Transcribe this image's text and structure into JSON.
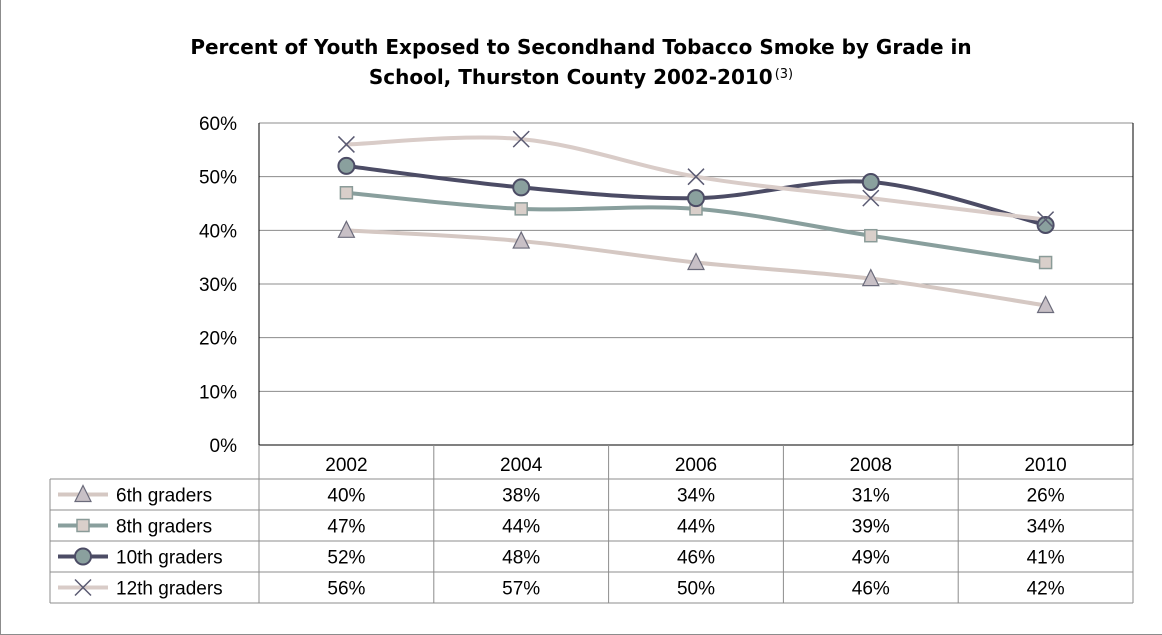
{
  "chart_data": {
    "type": "line",
    "title_line1": "Percent of Youth Exposed to Secondhand Tobacco Smoke by Grade in",
    "title_line2": "School, Thurston County 2002-2010",
    "title_note": "(3)",
    "categories": [
      "2002",
      "2004",
      "2006",
      "2008",
      "2010"
    ],
    "y_ticks": [
      "0%",
      "10%",
      "20%",
      "30%",
      "40%",
      "50%",
      "60%"
    ],
    "ylim": [
      0,
      60
    ],
    "grid": true,
    "legend": "data-table",
    "series": [
      {
        "name": "6th graders",
        "values": [
          40,
          38,
          34,
          31,
          26
        ],
        "labels": [
          "40%",
          "38%",
          "34%",
          "31%",
          "26%"
        ],
        "color": "#d5c8c3",
        "marker": "triangle",
        "marker_fill": "#c8c0c6",
        "marker_stroke": "#6b6b7b"
      },
      {
        "name": "8th graders",
        "values": [
          47,
          44,
          44,
          39,
          34
        ],
        "labels": [
          "47%",
          "44%",
          "44%",
          "39%",
          "34%"
        ],
        "color": "#899f9d",
        "marker": "square",
        "marker_fill": "#d9cfca",
        "marker_stroke": "#8a9b98"
      },
      {
        "name": "10th graders",
        "values": [
          52,
          48,
          46,
          49,
          41
        ],
        "labels": [
          "52%",
          "48%",
          "46%",
          "49%",
          "41%"
        ],
        "color": "#4c4c65",
        "marker": "circle",
        "marker_fill": "#8aa09e",
        "marker_stroke": "#4c4c65"
      },
      {
        "name": "12th graders",
        "values": [
          56,
          57,
          50,
          46,
          42
        ],
        "labels": [
          "56%",
          "57%",
          "50%",
          "46%",
          "42%"
        ],
        "color": "#d9ccc8",
        "marker": "x",
        "marker_fill": "none",
        "marker_stroke": "#5a5a72"
      }
    ]
  }
}
